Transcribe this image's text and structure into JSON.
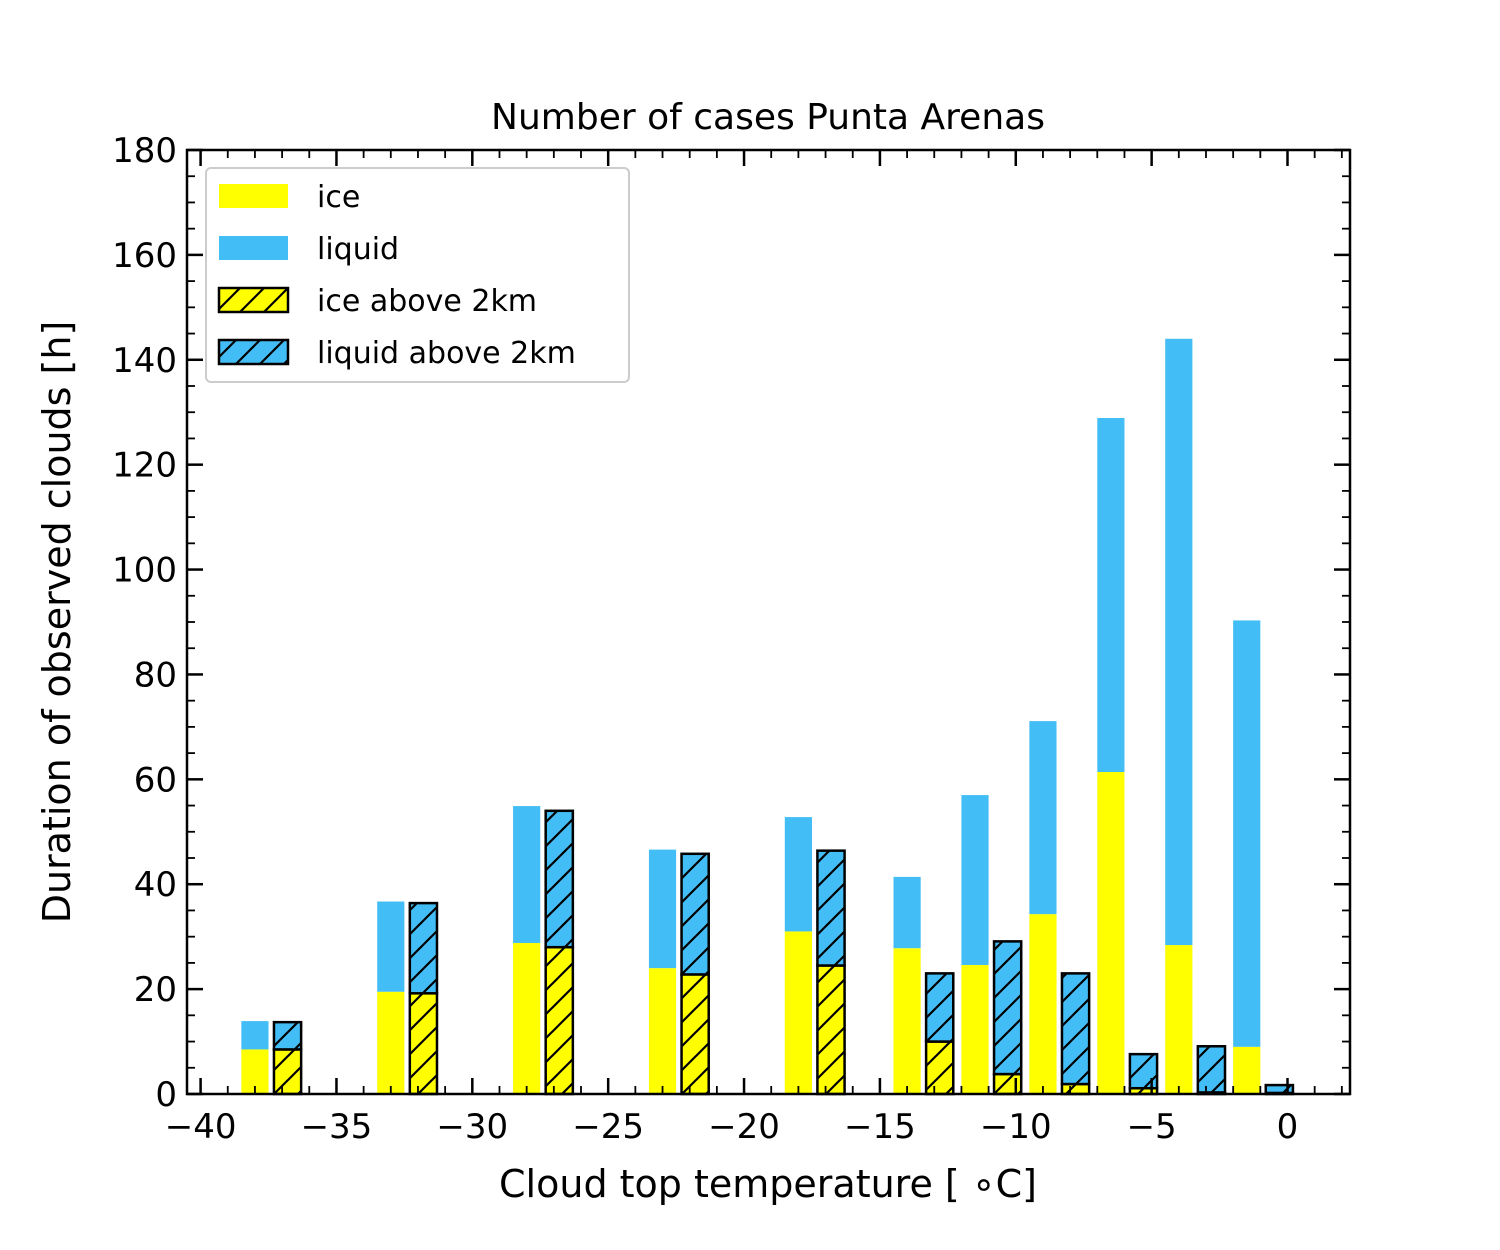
{
  "chart_data": {
    "type": "bar",
    "title": "Number of cases Punta Arenas",
    "xlabel": "Cloud top temperature [$^\\circ$C]",
    "xlabel_display": "Cloud top temperature [ ∘C]",
    "ylabel": "Duration of observed clouds [h]",
    "xlim": [
      -40.5,
      2.3
    ],
    "ylim": [
      0,
      180
    ],
    "x_ticks": [
      -40,
      -35,
      -30,
      -25,
      -20,
      -15,
      -10,
      -5,
      0
    ],
    "x_tick_labels": [
      "−40",
      "−35",
      "−30",
      "−25",
      "−20",
      "−15",
      "−10",
      "−5",
      "0"
    ],
    "y_ticks": [
      0,
      20,
      40,
      60,
      80,
      100,
      120,
      140,
      160,
      180
    ],
    "y_tick_labels": [
      "0",
      "20",
      "40",
      "60",
      "80",
      "100",
      "120",
      "140",
      "160",
      "180"
    ],
    "bar_width": 1.0,
    "stacked": true,
    "legend": {
      "position": "top-left",
      "entries": [
        {
          "label": "ice",
          "color": "#ffff00",
          "hatch": false
        },
        {
          "label": "liquid",
          "color": "#42bdf5",
          "hatch": false
        },
        {
          "label": "ice above 2km",
          "color": "#ffff00",
          "hatch": true
        },
        {
          "label": "liquid above 2km",
          "color": "#42bdf5",
          "hatch": true
        }
      ]
    },
    "colors": {
      "ice": "#ffff00",
      "liquid": "#42bdf5",
      "edge": "#000000"
    },
    "groups": [
      {
        "name": "all",
        "hatch": false,
        "x": [
          -38,
          -33,
          -28,
          -23,
          -18,
          -14,
          -11.5,
          -9,
          -6.5,
          -4,
          -1.5
        ],
        "ice": [
          8.5,
          19.5,
          28.8,
          24,
          31,
          27.8,
          24.6,
          34.3,
          61.4,
          28.4,
          9
        ],
        "liquid": [
          5.4,
          17.2,
          26.1,
          22.6,
          21.8,
          13.6,
          32.4,
          36.8,
          67.5,
          115.6,
          81.3
        ]
      },
      {
        "name": "above 2km",
        "hatch": true,
        "x": [
          -36.8,
          -31.8,
          -26.8,
          -21.8,
          -16.8,
          -12.8,
          -10.3,
          -7.8,
          -5.3,
          -2.8,
          -0.3
        ],
        "ice": [
          8.5,
          19.2,
          28,
          22.8,
          24.5,
          10,
          3.8,
          1.9,
          1.1,
          0.3,
          0.2
        ],
        "liquid": [
          5.2,
          17.2,
          26,
          23,
          21.9,
          13,
          25.3,
          21.1,
          6.5,
          8.8,
          1.5
        ]
      }
    ]
  }
}
